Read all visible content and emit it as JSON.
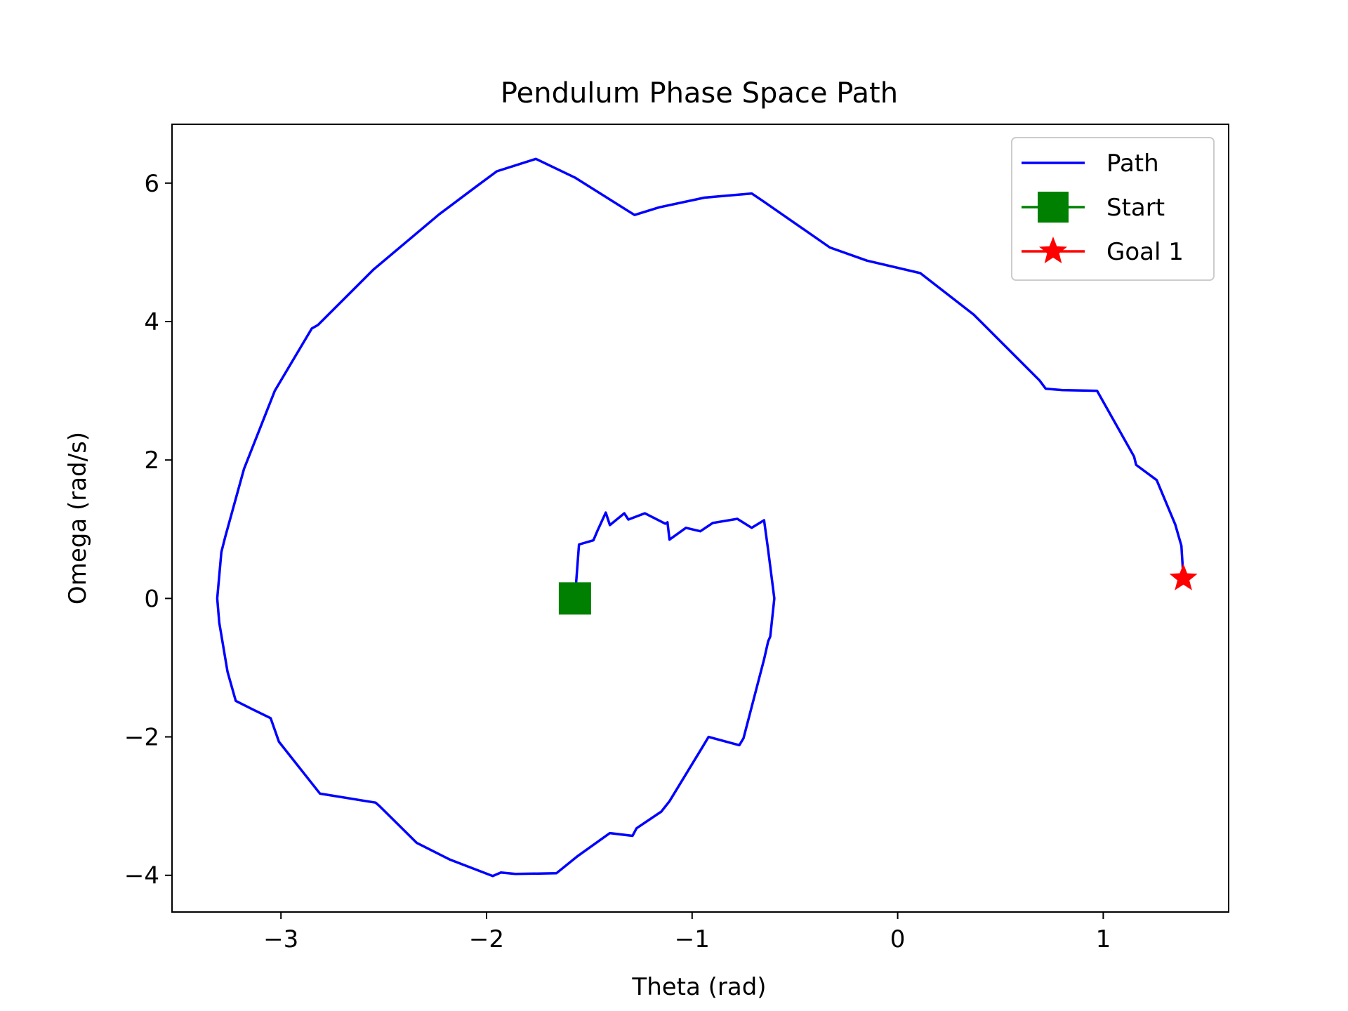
{
  "chart_data": {
    "type": "line",
    "title": "Pendulum Phase Space Path",
    "xlabel": "Theta (rad)",
    "ylabel": "Omega (rad/s)",
    "xlim": [
      -3.53,
      1.61
    ],
    "ylim": [
      -4.53,
      6.85
    ],
    "xticks": [
      -3,
      -2,
      -1,
      0,
      1
    ],
    "yticks": [
      -4,
      -2,
      0,
      2,
      4,
      6
    ],
    "xtick_labels": [
      "−3",
      "−2",
      "−1",
      "0",
      "1"
    ],
    "ytick_labels": [
      "−4",
      "−2",
      "0",
      "2",
      "4",
      "6"
    ],
    "grid": false,
    "legend_position": "top-right",
    "colors": {
      "path": "#0000ff",
      "start": "#008000",
      "goal": "#ff0000"
    },
    "series": [
      {
        "name": "Path",
        "marker": "line",
        "points": [
          [
            -1.57,
            0.0
          ],
          [
            -1.55,
            0.78
          ],
          [
            -1.48,
            0.84
          ],
          [
            -1.46,
            0.98
          ],
          [
            -1.42,
            1.24
          ],
          [
            -1.4,
            1.06
          ],
          [
            -1.33,
            1.23
          ],
          [
            -1.31,
            1.14
          ],
          [
            -1.23,
            1.23
          ],
          [
            -1.13,
            1.08
          ],
          [
            -1.12,
            1.1
          ],
          [
            -1.11,
            0.85
          ],
          [
            -1.03,
            1.02
          ],
          [
            -0.96,
            0.97
          ],
          [
            -0.9,
            1.09
          ],
          [
            -0.78,
            1.15
          ],
          [
            -0.71,
            1.02
          ],
          [
            -0.65,
            1.13
          ],
          [
            -0.63,
            0.7
          ],
          [
            -0.6,
            0.0
          ],
          [
            -0.62,
            -0.55
          ],
          [
            -0.63,
            -0.62
          ],
          [
            -0.65,
            -0.88
          ],
          [
            -0.75,
            -2.02
          ],
          [
            -0.77,
            -2.12
          ],
          [
            -0.92,
            -2.0
          ],
          [
            -0.95,
            -2.15
          ],
          [
            -1.11,
            -2.93
          ],
          [
            -1.15,
            -3.08
          ],
          [
            -1.27,
            -3.32
          ],
          [
            -1.29,
            -3.43
          ],
          [
            -1.4,
            -3.39
          ],
          [
            -1.56,
            -3.73
          ],
          [
            -1.66,
            -3.97
          ],
          [
            -1.86,
            -3.98
          ],
          [
            -1.93,
            -3.96
          ],
          [
            -1.97,
            -4.01
          ],
          [
            -2.18,
            -3.77
          ],
          [
            -2.34,
            -3.53
          ],
          [
            -2.52,
            -3.0
          ],
          [
            -2.54,
            -2.95
          ],
          [
            -2.81,
            -2.82
          ],
          [
            -3.01,
            -2.07
          ],
          [
            -3.05,
            -1.73
          ],
          [
            -3.14,
            -1.6
          ],
          [
            -3.22,
            -1.48
          ],
          [
            -3.26,
            -1.06
          ],
          [
            -3.3,
            -0.35
          ],
          [
            -3.31,
            0.0
          ],
          [
            -3.29,
            0.67
          ],
          [
            -3.27,
            0.9
          ],
          [
            -3.18,
            1.87
          ],
          [
            -3.03,
            3.0
          ],
          [
            -2.85,
            3.9
          ],
          [
            -2.82,
            3.95
          ],
          [
            -2.55,
            4.75
          ],
          [
            -2.23,
            5.55
          ],
          [
            -2.05,
            5.95
          ],
          [
            -1.95,
            6.17
          ],
          [
            -1.76,
            6.35
          ],
          [
            -1.57,
            6.08
          ],
          [
            -1.28,
            5.54
          ],
          [
            -1.16,
            5.65
          ],
          [
            -0.94,
            5.79
          ],
          [
            -0.71,
            5.85
          ],
          [
            -0.65,
            5.73
          ],
          [
            -0.33,
            5.07
          ],
          [
            -0.15,
            4.88
          ],
          [
            0.11,
            4.7
          ],
          [
            0.37,
            4.1
          ],
          [
            0.69,
            3.15
          ],
          [
            0.72,
            3.03
          ],
          [
            0.8,
            3.01
          ],
          [
            0.97,
            3.0
          ],
          [
            1.15,
            2.05
          ],
          [
            1.16,
            1.93
          ],
          [
            1.26,
            1.71
          ],
          [
            1.35,
            1.07
          ],
          [
            1.38,
            0.76
          ],
          [
            1.39,
            0.29
          ]
        ]
      },
      {
        "name": "Start",
        "marker": "square",
        "points": [
          [
            -1.57,
            0.0
          ]
        ]
      },
      {
        "name": "Goal 1",
        "marker": "star",
        "points": [
          [
            1.39,
            0.29
          ]
        ]
      }
    ]
  }
}
